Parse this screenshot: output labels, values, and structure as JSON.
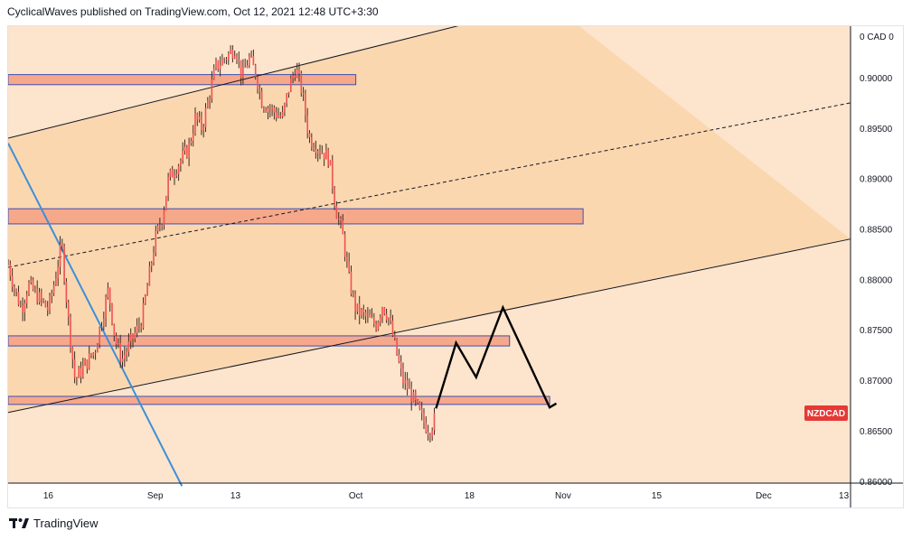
{
  "header": {
    "publisher_line": "CyclicalWaves published on TradingView.com, Oct 12, 2021 12:48 UTC+3:30"
  },
  "footer": {
    "brand": "TradingView"
  },
  "chart_data": {
    "type": "candlestick",
    "symbol_badge": "NZDCAD",
    "price_axis_header": "0 CAD 0",
    "ylim": [
      0.8598,
      0.9051
    ],
    "y_ticks": [
      "0.90000",
      "0.89500",
      "0.89000",
      "0.88500",
      "0.88000",
      "0.87500",
      "0.87000",
      "0.86500",
      "0.86000"
    ],
    "y_tick_values": [
      0.9,
      0.895,
      0.89,
      0.885,
      0.88,
      0.875,
      0.87,
      0.865,
      0.86
    ],
    "x_ticks": [
      "16",
      "Sep",
      "13",
      "Oct",
      "18",
      "Nov",
      "15",
      "Dec",
      "13"
    ],
    "x_tick_dates": [
      "2021-08-16",
      "2021-09-01",
      "2021-09-13",
      "2021-10-01",
      "2021-10-18",
      "2021-11-01",
      "2021-11-15",
      "2021-12-01",
      "2021-12-13"
    ],
    "xlim": [
      "2021-08-10",
      "2021-12-14"
    ],
    "price_path": [
      [
        "2021-08-10",
        0.8815
      ],
      [
        "2021-08-11",
        0.879
      ],
      [
        "2021-08-12",
        0.877
      ],
      [
        "2021-08-13",
        0.8795
      ],
      [
        "2021-08-16",
        0.877
      ],
      [
        "2021-08-17",
        0.88
      ],
      [
        "2021-08-18",
        0.8835
      ],
      [
        "2021-08-19",
        0.876
      ],
      [
        "2021-08-20",
        0.87
      ],
      [
        "2021-08-23",
        0.873
      ],
      [
        "2021-08-24",
        0.876
      ],
      [
        "2021-08-25",
        0.879
      ],
      [
        "2021-08-26",
        0.874
      ],
      [
        "2021-08-27",
        0.872
      ],
      [
        "2021-08-30",
        0.876
      ],
      [
        "2021-08-31",
        0.88
      ],
      [
        "2021-09-01",
        0.884
      ],
      [
        "2021-09-02",
        0.886
      ],
      [
        "2021-09-03",
        0.89
      ],
      [
        "2021-09-06",
        0.893
      ],
      [
        "2021-09-07",
        0.896
      ],
      [
        "2021-09-08",
        0.895
      ],
      [
        "2021-09-09",
        0.898
      ],
      [
        "2021-09-10",
        0.901
      ],
      [
        "2021-09-13",
        0.903
      ],
      [
        "2021-09-14",
        0.9
      ],
      [
        "2021-09-15",
        0.902
      ],
      [
        "2021-09-16",
        0.9005
      ],
      [
        "2021-09-17",
        0.8975
      ],
      [
        "2021-09-20",
        0.896
      ],
      [
        "2021-09-21",
        0.899
      ],
      [
        "2021-09-22",
        0.901
      ],
      [
        "2021-09-23",
        0.8985
      ],
      [
        "2021-09-24",
        0.894
      ],
      [
        "2021-09-27",
        0.892
      ],
      [
        "2021-09-28",
        0.887
      ],
      [
        "2021-09-29",
        0.8845
      ],
      [
        "2021-09-30",
        0.88
      ],
      [
        "2021-10-01",
        0.877
      ],
      [
        "2021-10-04",
        0.8755
      ],
      [
        "2021-10-05",
        0.8775
      ],
      [
        "2021-10-06",
        0.876
      ],
      [
        "2021-10-07",
        0.873
      ],
      [
        "2021-10-08",
        0.87
      ],
      [
        "2021-10-09",
        0.869
      ],
      [
        "2021-10-11",
        0.866
      ],
      [
        "2021-10-12",
        0.865
      ],
      [
        "2021-10-13",
        0.8665
      ]
    ],
    "zones": [
      {
        "from": 0.9003,
        "to": 0.8993,
        "start": "2021-08-10",
        "end": "2021-10-01"
      },
      {
        "from": 0.887,
        "to": 0.8855,
        "start": "2021-08-10",
        "end": "2021-11-04"
      },
      {
        "from": 0.8744,
        "to": 0.8734,
        "start": "2021-08-10",
        "end": "2021-10-24"
      },
      {
        "from": 0.8684,
        "to": 0.8676,
        "start": "2021-08-10",
        "end": "2021-10-30"
      }
    ],
    "trend_lines": [
      {
        "style": "solid",
        "points": [
          [
            "2021-08-10",
            0.894
          ],
          [
            "2021-10-30",
            0.9074
          ]
        ]
      },
      {
        "style": "dashed",
        "points": [
          [
            "2021-08-10",
            0.8812
          ],
          [
            "2021-12-14",
            0.8975
          ]
        ]
      },
      {
        "style": "solid",
        "points": [
          [
            "2021-08-10",
            0.8668
          ],
          [
            "2021-12-14",
            0.884
          ]
        ]
      },
      {
        "style": "solid",
        "color": "#3c8fd8",
        "points": [
          [
            "2021-08-10",
            0.8935
          ],
          [
            "2021-09-05",
            0.8595
          ]
        ]
      }
    ],
    "projection": [
      [
        "2021-10-13",
        0.8672
      ],
      [
        "2021-10-16",
        0.8737
      ],
      [
        "2021-10-19",
        0.8703
      ],
      [
        "2021-10-23",
        0.8772
      ],
      [
        "2021-10-30",
        0.8673
      ],
      [
        "2021-10-31",
        0.8677
      ]
    ],
    "colors": {
      "channel_fill": "#fbd7b0",
      "background_fill": "#fde4cc",
      "zone_fill": "#f6a88a",
      "zone_border": "#3b4fb5",
      "candle": "#ef5350",
      "badge": "#e53935"
    }
  }
}
